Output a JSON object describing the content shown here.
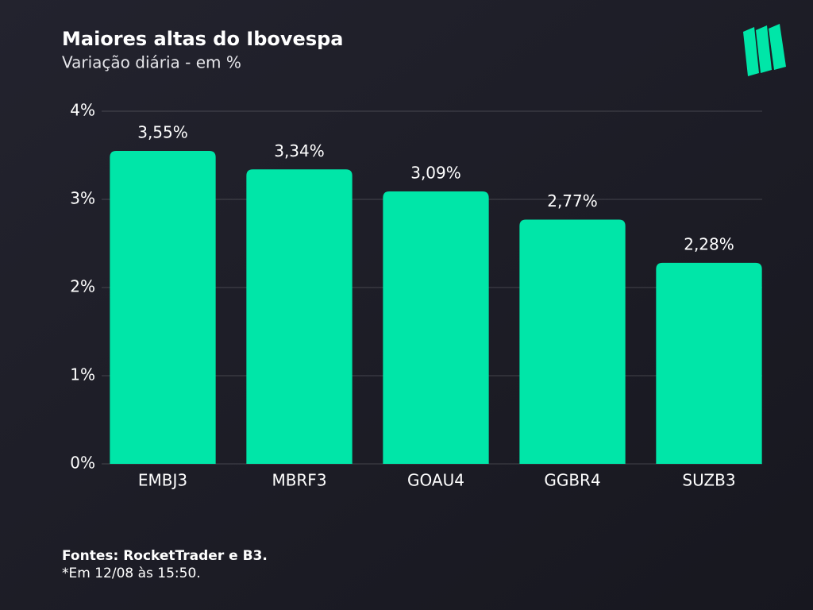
{
  "chart_data": {
    "type": "bar",
    "title": "Maiores altas do Ibovespa",
    "subtitle": "Variação diária - em %",
    "categories": [
      "EMBJ3",
      "MBRF3",
      "GOAU4",
      "GGBR4",
      "SUZB3"
    ],
    "values": [
      3.55,
      3.34,
      3.09,
      2.77,
      2.28
    ],
    "value_labels": [
      "3,55%",
      "3,34%",
      "3,09%",
      "2,77%",
      "2,28%"
    ],
    "color": "#00e6a8",
    "ylim": [
      0,
      4
    ],
    "yticks": [
      {
        "value": 0,
        "label": "0%"
      },
      {
        "value": 1,
        "label": "1%"
      },
      {
        "value": 2,
        "label": "2%"
      },
      {
        "value": 3,
        "label": "3%"
      },
      {
        "value": 4,
        "label": "4%"
      }
    ],
    "grid": true,
    "source": "Fontes: RocketTrader e B3.",
    "note": "*Em 12/08 às 15:50."
  }
}
